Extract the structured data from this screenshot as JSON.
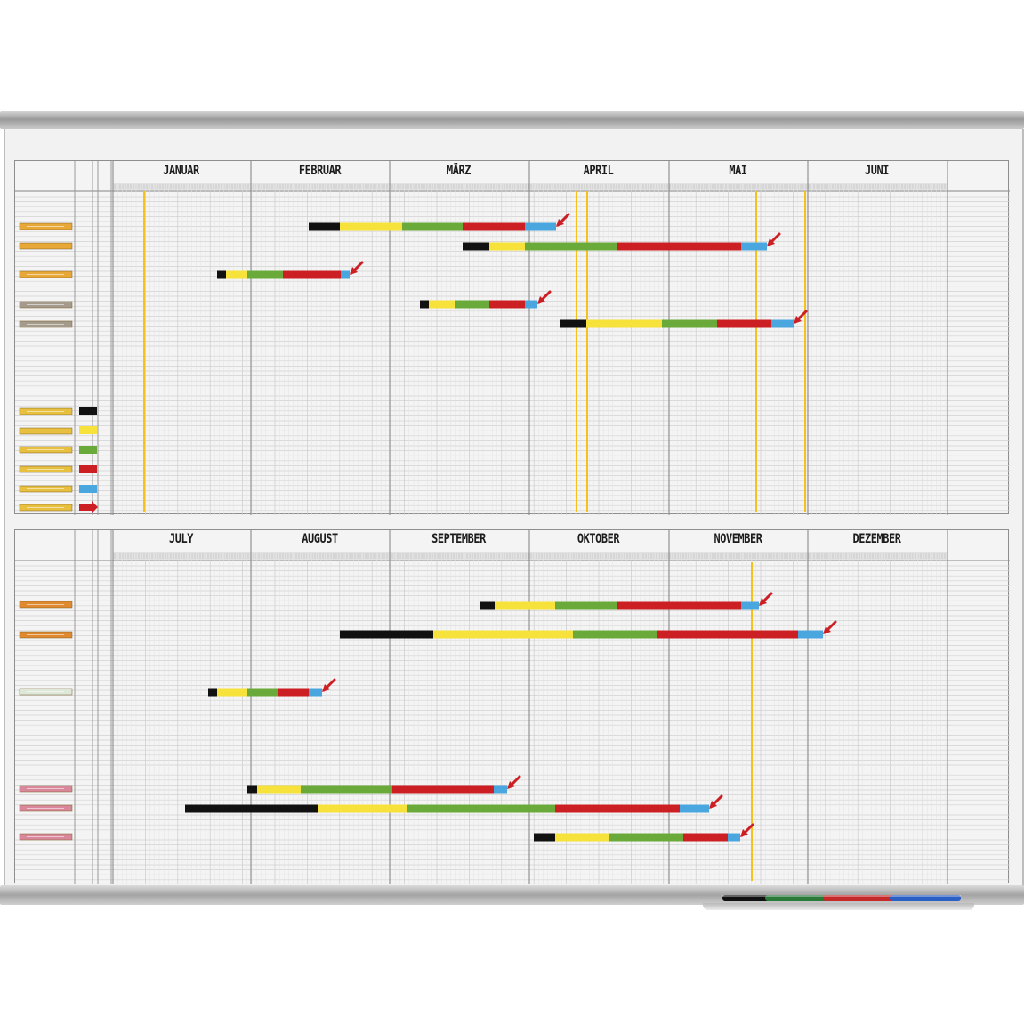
{
  "colors": {
    "board": "#f2f2f2",
    "frame": "#a8a8a8",
    "black": "#111111",
    "yellow": "#f6e23a",
    "green": "#6aaa3a",
    "red": "#cc1f24",
    "blue": "#4aa6df",
    "marker_line": "#f4c21a",
    "label_orange": "#e49b3c",
    "label_grey": "#9a9a9a"
  },
  "top_panel": {
    "months": [
      "JANUAR",
      "FEBRUAR",
      "MÄRZ",
      "APRIL",
      "MAI",
      "JUNI"
    ]
  },
  "bottom_panel": {
    "months": [
      "JULY",
      "AUGUST",
      "SEPTEMBER",
      "OKTOBER",
      "NOVEMBER",
      "DEZEMBER"
    ]
  },
  "legend": {
    "colors": [
      "black",
      "yellow",
      "green",
      "red",
      "blue",
      "red-arrow"
    ]
  },
  "tray": {
    "markers": [
      "black",
      "green",
      "red",
      "blue"
    ]
  }
}
